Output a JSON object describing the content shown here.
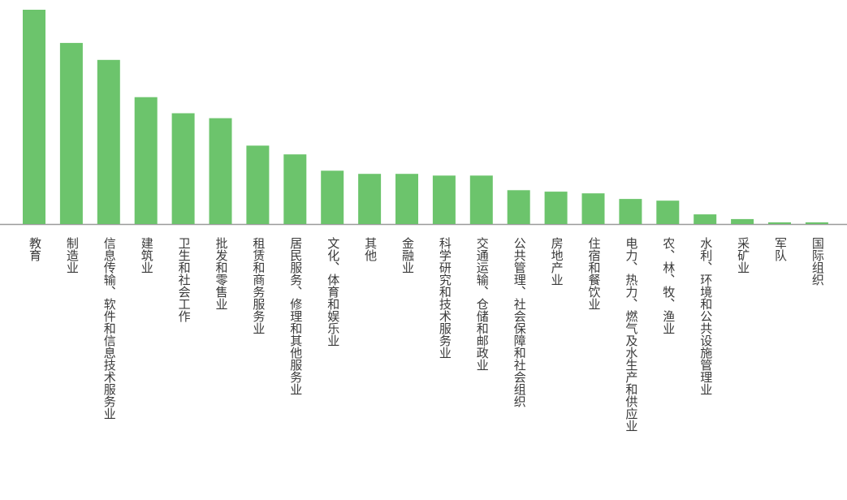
{
  "chart_data": {
    "type": "bar",
    "bar_color": "#6cc46c",
    "axis_color": "#9a9a9a",
    "categories": [
      "教育",
      "制造业",
      "信息传输、软件和信息技术服务业",
      "建筑业",
      "卫生和社会工作",
      "批发和零售业",
      "租赁和商务服务业",
      "居民服务、修理和其他服务业",
      "文化、体育和娱乐业",
      "其他",
      "金融业",
      "科学研究和技术服务业",
      "交通运输、仓储和邮政业",
      "公共管理、社会保障和社会组织",
      "房地产业",
      "住宿和餐饮业",
      "电力、热力、燃气及水生产和供应业",
      "农、林、牧、渔业",
      "水利、环境和公共设施管理业",
      "采矿业",
      "军队",
      "国际组织"
    ],
    "values": [
      100,
      84.5,
      76.6,
      59.2,
      51.7,
      49.4,
      36.6,
      32.5,
      24.9,
      23.4,
      23.4,
      22.6,
      22.6,
      15.8,
      15.1,
      14.3,
      11.7,
      10.9,
      4.5,
      2.3,
      0.8,
      0.8
    ],
    "ylim": [
      0,
      100
    ]
  }
}
